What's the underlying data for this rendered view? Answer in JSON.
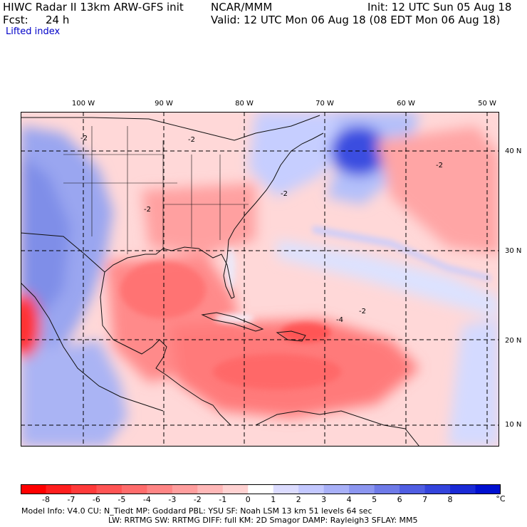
{
  "header": {
    "model_title": "HIWC Radar II 13km ARW-GFS init",
    "org": "NCAR/MMM",
    "init": "Init: 12 UTC Sun 05 Aug 18",
    "fcst_label": "Fcst:",
    "fcst_value": "24 h",
    "valid": "Valid: 12 UTC Mon 06 Aug 18 (08 EDT Mon 06 Aug 18)",
    "field": "Lifted index"
  },
  "map": {
    "lon_labels": [
      "100 W",
      "90 W",
      "80 W",
      "70 W",
      "60 W",
      "50 W"
    ],
    "lat_labels": [
      "40 N",
      "30 N",
      "20 N",
      "10 N"
    ],
    "contour_labels": [
      "-2",
      "-2",
      "-2",
      "-2",
      "-4",
      "-2",
      "-2"
    ],
    "colors": {
      "negative_strong": "#ff2020",
      "negative_mid": "#ff7a7a",
      "negative_light": "#ffc8c8",
      "neutral": "#ffffff",
      "positive_light": "#c8d2ff",
      "positive_mid": "#7a8cf0",
      "positive_strong": "#1428e6"
    }
  },
  "colorbar": {
    "ticks": [
      "-8",
      "-7",
      "-6",
      "-5",
      "-4",
      "-3",
      "-2",
      "-1",
      "0",
      "1",
      "2",
      "3",
      "4",
      "5",
      "6",
      "7",
      "8"
    ],
    "unit": "°C",
    "colors": [
      "#ff0000",
      "#ff1e1e",
      "#ff3a3a",
      "#ff5454",
      "#ff6c6c",
      "#ff8585",
      "#ff9e9e",
      "#ffb8b8",
      "#ffd2d2",
      "#ffffff",
      "#dcdcff",
      "#c3c8ff",
      "#a8b0f8",
      "#8c96f0",
      "#6e7ae8",
      "#505ee2",
      "#3444dc",
      "#1a2ad6",
      "#0010d0"
    ]
  },
  "footer": {
    "line1": "Model Info: V4.0      CU: N_Tiedt  MP: Goddard      PBL: YSU       SF: Noah LSM      13 km     51 levels    64 sec",
    "line2": "LW: RRTMG     SW: RRTMG   DIFF: full     KM: 2D Smagor DAMP: Rayleigh3   SFLAY: MM5"
  }
}
